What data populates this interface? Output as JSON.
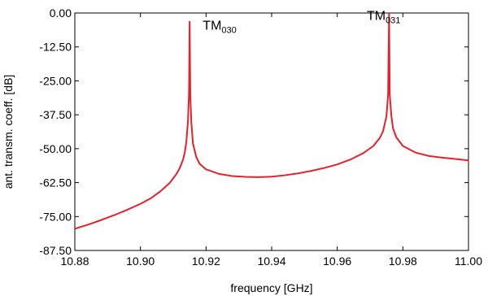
{
  "chart_data": {
    "type": "line",
    "title": "",
    "xlabel": "frequency [GHz]",
    "ylabel": "ant. transm. coeff. [dB]",
    "xlim": [
      10.88,
      11.0
    ],
    "ylim": [
      -87.5,
      0.0
    ],
    "x_ticks": [
      "10.88",
      "10.90",
      "10.92",
      "10.94",
      "10.96",
      "10.98",
      "11.00"
    ],
    "y_ticks": [
      "0.00",
      "-12.50",
      "-25.00",
      "-37.50",
      "-50.00",
      "-62.50",
      "-75.00",
      "-87.50"
    ],
    "grid": false,
    "legend": "none",
    "series": [
      {
        "color": "#e8202a",
        "points": [
          [
            10.88,
            -79.5
          ],
          [
            10.884,
            -78.0
          ],
          [
            10.888,
            -76.3
          ],
          [
            10.892,
            -74.5
          ],
          [
            10.896,
            -72.5
          ],
          [
            10.9,
            -70.3
          ],
          [
            10.903,
            -68.4
          ],
          [
            10.906,
            -65.8
          ],
          [
            10.909,
            -62.5
          ],
          [
            10.911,
            -59.3
          ],
          [
            10.912,
            -57.1
          ],
          [
            10.913,
            -54.0
          ],
          [
            10.9135,
            -51.5
          ],
          [
            10.914,
            -47.5
          ],
          [
            10.9145,
            -39.5
          ],
          [
            10.9148,
            -30.0
          ],
          [
            10.915,
            -3.0
          ],
          [
            10.9152,
            -30.0
          ],
          [
            10.9155,
            -40.0
          ],
          [
            10.916,
            -48.0
          ],
          [
            10.917,
            -53.0
          ],
          [
            10.918,
            -55.5
          ],
          [
            10.92,
            -57.6
          ],
          [
            10.924,
            -59.3
          ],
          [
            10.928,
            -60.1
          ],
          [
            10.932,
            -60.4
          ],
          [
            10.936,
            -60.5
          ],
          [
            10.94,
            -60.3
          ],
          [
            10.944,
            -59.8
          ],
          [
            10.948,
            -59.1
          ],
          [
            10.952,
            -58.2
          ],
          [
            10.956,
            -57.1
          ],
          [
            10.96,
            -55.8
          ],
          [
            10.964,
            -54.0
          ],
          [
            10.968,
            -51.6
          ],
          [
            10.971,
            -49.0
          ],
          [
            10.973,
            -46.0
          ],
          [
            10.974,
            -43.4
          ],
          [
            10.975,
            -38.0
          ],
          [
            10.9755,
            -30.0
          ],
          [
            10.9758,
            0.0
          ],
          [
            10.976,
            -30.0
          ],
          [
            10.9765,
            -38.0
          ],
          [
            10.977,
            -42.5
          ],
          [
            10.978,
            -45.8
          ],
          [
            10.98,
            -49.0
          ],
          [
            10.984,
            -51.5
          ],
          [
            10.988,
            -52.7
          ],
          [
            10.992,
            -53.3
          ],
          [
            10.996,
            -53.8
          ],
          [
            11.0,
            -54.3
          ]
        ]
      }
    ],
    "annotations": [
      {
        "main": "TM",
        "sub": "030",
        "x": 10.919,
        "y": -6.2
      },
      {
        "main": "TM",
        "sub": "031",
        "x": 10.969,
        "y": -2.5
      }
    ]
  }
}
